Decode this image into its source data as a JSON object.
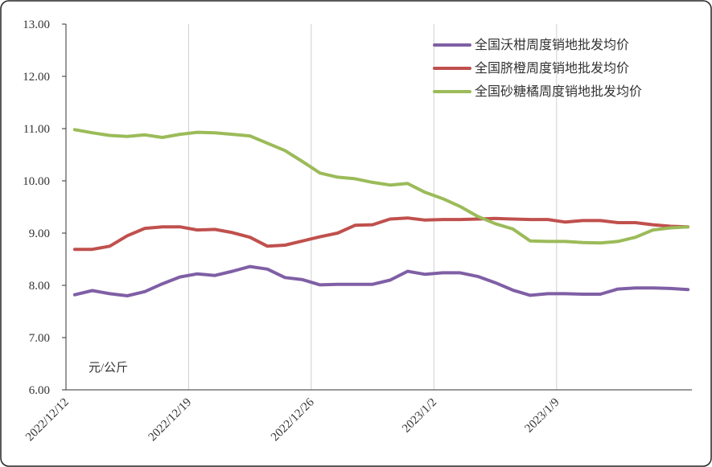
{
  "chart_data": {
    "type": "line",
    "categories": [
      "2022/12/12",
      null,
      null,
      null,
      null,
      null,
      null,
      "2022/12/19",
      null,
      null,
      null,
      null,
      null,
      null,
      "2022/12/26",
      null,
      null,
      null,
      null,
      null,
      null,
      "2023/1/2",
      null,
      null,
      null,
      null,
      null,
      null,
      "2023/1/9",
      null,
      null,
      null,
      null,
      null,
      null,
      null
    ],
    "series": [
      {
        "name": "全国沃柑周度销地批发均价",
        "color": "#7f5fa5",
        "values": [
          7.82,
          7.9,
          7.84,
          7.8,
          7.88,
          8.03,
          8.16,
          8.22,
          8.19,
          8.27,
          8.36,
          8.31,
          8.15,
          8.11,
          8.01,
          8.02,
          8.02,
          8.02,
          8.1,
          8.27,
          8.21,
          8.24,
          8.24,
          8.17,
          8.05,
          7.91,
          7.81,
          7.84,
          7.84,
          7.83,
          7.83,
          7.93,
          7.95,
          7.95,
          7.94,
          7.92
        ]
      },
      {
        "name": "全国脐橙周度销地批发均价",
        "color": "#c0504d",
        "values": [
          8.69,
          8.69,
          8.75,
          8.95,
          9.09,
          9.12,
          9.12,
          9.06,
          9.07,
          9.01,
          8.92,
          8.75,
          8.77,
          8.85,
          8.93,
          9.0,
          9.15,
          9.16,
          9.27,
          9.29,
          9.25,
          9.26,
          9.26,
          9.27,
          9.28,
          9.27,
          9.26,
          9.26,
          9.21,
          9.24,
          9.24,
          9.2,
          9.2,
          9.16,
          9.13,
          9.12
        ]
      },
      {
        "name": "全国砂糖橘周度销地批发均价",
        "color": "#9bbb59",
        "values": [
          10.98,
          10.92,
          10.87,
          10.85,
          10.88,
          10.83,
          10.89,
          10.93,
          10.92,
          10.89,
          10.86,
          10.72,
          10.58,
          10.37,
          10.15,
          10.07,
          10.04,
          9.97,
          9.92,
          9.95,
          9.78,
          9.66,
          9.51,
          9.32,
          9.18,
          9.08,
          8.85,
          8.84,
          8.84,
          8.82,
          8.81,
          8.84,
          8.92,
          9.06,
          9.1,
          9.12
        ]
      }
    ],
    "ylim": [
      6,
      13
    ],
    "yticks": [
      {
        "value": 6,
        "label": "6.00"
      },
      {
        "value": 7,
        "label": "7.00"
      },
      {
        "value": 8,
        "label": "8.00"
      },
      {
        "value": 9,
        "label": "9.00"
      },
      {
        "value": 10,
        "label": "10.00"
      },
      {
        "value": 11,
        "label": "11.00"
      },
      {
        "value": 12,
        "label": "12.00"
      },
      {
        "value": 13,
        "label": "13.00"
      }
    ],
    "unit_label": "元/公斤",
    "grid": "x",
    "legend": "top-right"
  }
}
